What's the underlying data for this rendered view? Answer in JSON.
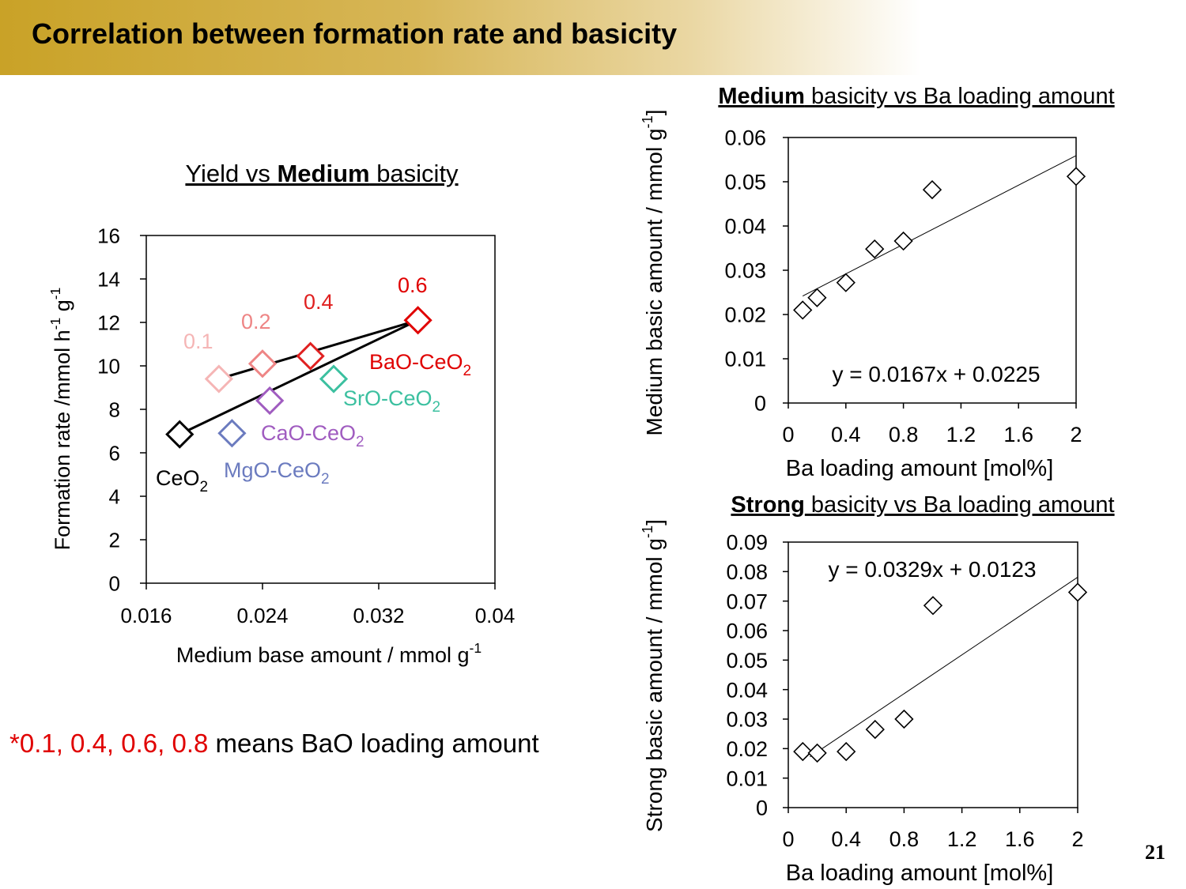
{
  "slide": {
    "title": "Correlation between formation rate and basicity",
    "page_number": "21",
    "note": {
      "marker": "*",
      "values": "0.1, 0.4, 0.6, 0.8",
      "text": " means BaO loading amount",
      "values_color": "#e00000"
    }
  },
  "chart_data": [
    {
      "type": "scatter",
      "title": {
        "pre": "Yield vs ",
        "bold": "Medium",
        "post": " basicity"
      },
      "xlabel": {
        "text": "Medium base amount / mmol g",
        "sup": "-1"
      },
      "ylabel": {
        "parts": [
          {
            "t": "Formation rate /mmol h"
          },
          {
            "t": "-1",
            "sup": true
          },
          {
            "t": " g"
          },
          {
            "t": "-1",
            "sup": true
          }
        ]
      },
      "xlim": [
        0.016,
        0.04
      ],
      "ylim": [
        0,
        16
      ],
      "xticks": [
        0.016,
        0.024,
        0.032,
        0.04
      ],
      "xtick_labels": [
        "0.016",
        "0.024",
        "0.032",
        "0.04"
      ],
      "yticks": [
        0,
        2,
        4,
        6,
        8,
        10,
        12,
        14,
        16
      ],
      "ytick_labels": [
        "0",
        "2",
        "4",
        "6",
        "8",
        "10",
        "12",
        "14",
        "16"
      ],
      "points": [
        {
          "label": "CeO",
          "sub": "2",
          "x": 0.0183,
          "y": 6.85,
          "color": "#000000"
        },
        {
          "label": "MgO-CeO",
          "sub": "2",
          "x": 0.0219,
          "y": 6.9,
          "color": "#6b7bbf"
        },
        {
          "label": "CaO-CeO",
          "sub": "2",
          "x": 0.0245,
          "y": 8.4,
          "color": "#a05cc0"
        },
        {
          "label": "SrO-CeO",
          "sub": "2",
          "x": 0.0289,
          "y": 9.4,
          "color": "#3cc0a0"
        },
        {
          "label": "0.1",
          "x": 0.021,
          "y": 9.4,
          "color": "#f5b5b5"
        },
        {
          "label": "0.2",
          "x": 0.024,
          "y": 10.1,
          "color": "#ee8585"
        },
        {
          "label": "0.4",
          "x": 0.0273,
          "y": 10.45,
          "color": "#e02020"
        },
        {
          "label": "0.6",
          "x": 0.0347,
          "y": 12.1,
          "color": "#e00000"
        },
        {
          "label": "BaO-CeO",
          "sub": "2",
          "color": "#e00000"
        }
      ],
      "lines": [
        {
          "x1": 0.0183,
          "y1": 6.85,
          "x2": 0.0347,
          "y2": 12.1
        },
        {
          "x1": 0.021,
          "y1": 9.4,
          "x2": 0.0347,
          "y2": 12.1
        }
      ]
    },
    {
      "type": "scatter",
      "title": {
        "bold": "Medium",
        "post": " basicity vs Ba loading amount"
      },
      "xlabel": {
        "text": "Ba loading amount [mol%]"
      },
      "ylabel": {
        "parts": [
          {
            "t": "Medium basic amount / mmol g"
          },
          {
            "t": "-1",
            "sup": true
          },
          {
            "t": "]"
          }
        ]
      },
      "xlim": [
        0,
        2
      ],
      "ylim": [
        0,
        0.06
      ],
      "xticks": [
        0,
        0.4,
        0.8,
        1.2,
        1.6,
        2
      ],
      "xtick_labels": [
        "0",
        "0.4",
        "0.8",
        "1.2",
        "1.6",
        "2"
      ],
      "yticks": [
        0,
        0.01,
        0.02,
        0.03,
        0.04,
        0.05,
        0.06
      ],
      "ytick_labels": [
        "0",
        "0.01",
        "0.02",
        "0.03",
        "0.04",
        "0.05",
        "0.06"
      ],
      "x": [
        0.1,
        0.2,
        0.4,
        0.6,
        0.8,
        1.0,
        2.0
      ],
      "y": [
        0.021,
        0.0238,
        0.0272,
        0.0348,
        0.0366,
        0.0482,
        0.0512
      ],
      "equation": "y = 0.0167x + 0.0225",
      "trendline": {
        "slope": 0.0167,
        "intercept": 0.0225,
        "x_range": [
          0.1,
          2.0
        ]
      }
    },
    {
      "type": "scatter",
      "title": {
        "bold": "Strong",
        "post": " basicity vs Ba loading amount"
      },
      "xlabel": {
        "text": "Ba loading amount [mol%]"
      },
      "ylabel": {
        "parts": [
          {
            "t": "Strong basic amount / mmol g"
          },
          {
            "t": "-1",
            "sup": true
          },
          {
            "t": "]"
          }
        ]
      },
      "xlim": [
        0,
        2
      ],
      "ylim": [
        0,
        0.09
      ],
      "xticks": [
        0,
        0.4,
        0.8,
        1.2,
        1.6,
        2
      ],
      "xtick_labels": [
        "0",
        "0.4",
        "0.8",
        "1.2",
        "1.6",
        "2"
      ],
      "yticks": [
        0,
        0.01,
        0.02,
        0.03,
        0.04,
        0.05,
        0.06,
        0.07,
        0.08,
        0.09
      ],
      "ytick_labels": [
        "0",
        "0.01",
        "0.02",
        "0.03",
        "0.04",
        "0.05",
        "0.06",
        "0.07",
        "0.08",
        "0.09"
      ],
      "x": [
        0.1,
        0.2,
        0.4,
        0.6,
        0.8,
        1.0,
        2.0
      ],
      "y": [
        0.019,
        0.0185,
        0.019,
        0.0265,
        0.03,
        0.0685,
        0.073
      ],
      "equation": "y = 0.0329x + 0.0123",
      "trendline": {
        "slope": 0.0329,
        "intercept": 0.0123,
        "x_range": [
          0.15,
          2.0
        ]
      }
    }
  ]
}
